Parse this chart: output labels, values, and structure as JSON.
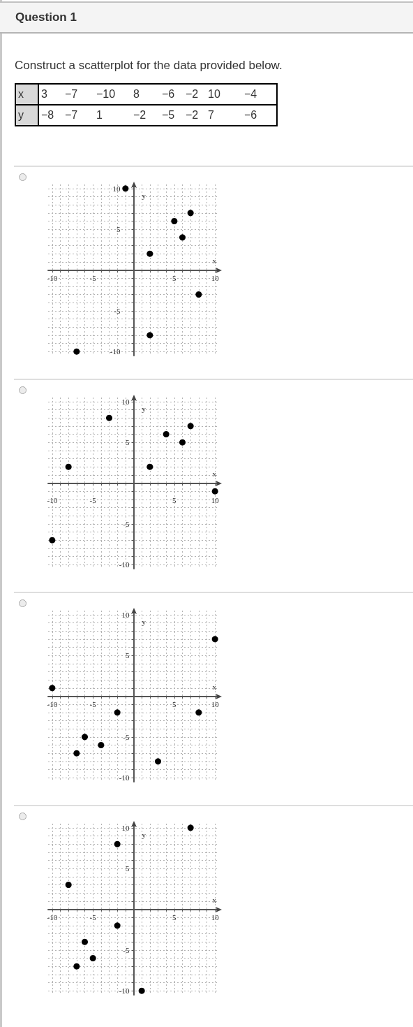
{
  "chart_data": [
    {
      "type": "other",
      "title": "Question 1",
      "subtitle": "Construct a scatterplot for the data provided below.",
      "annotations": [
        "x",
        "3",
        "−7",
        "−10",
        "8",
        "−6",
        "−2",
        "10",
        "−4",
        "y",
        "−8",
        "−7",
        "1",
        "−2",
        "−5",
        "−2",
        "7",
        "−6"
      ]
    },
    {
      "type": "scatter",
      "xlabel": "x",
      "ylabel": "y",
      "x": [
        -1,
        5,
        7,
        6,
        2,
        8,
        2,
        -7
      ],
      "values": [
        10,
        6,
        7,
        4,
        2,
        -3,
        -8,
        -10
      ],
      "color": "#000000",
      "marker": "circle",
      "grid": true,
      "xlim": [
        -10.5,
        10.5
      ],
      "ylim": [
        -10.5,
        10.5
      ],
      "xticks": [
        -10,
        {
          "value": -9,
          "label": null
        },
        {
          "value": -8,
          "label": null
        },
        {
          "value": -7,
          "label": null
        },
        {
          "value": -6,
          "label": null
        },
        -5,
        {
          "value": -4,
          "label": null
        },
        {
          "value": -3,
          "label": null
        },
        {
          "value": -2,
          "label": null
        },
        {
          "value": -1,
          "label": null
        },
        {
          "value": 1,
          "label": null
        },
        {
          "value": 2,
          "label": null
        },
        {
          "value": 3,
          "label": null
        },
        {
          "value": 4,
          "label": null
        },
        5,
        {
          "value": 6,
          "label": null
        },
        {
          "value": 7,
          "label": null
        },
        {
          "value": 8,
          "label": null
        },
        {
          "value": 9,
          "label": null
        },
        10
      ],
      "yticks": [
        -10,
        {
          "value": -9,
          "label": null
        },
        {
          "value": -8,
          "label": null
        },
        {
          "value": -7,
          "label": null
        },
        {
          "value": -6,
          "label": null
        },
        -5,
        {
          "value": -4,
          "label": null
        },
        {
          "value": -3,
          "label": null
        },
        {
          "value": -2,
          "label": null
        },
        {
          "value": -1,
          "label": null
        },
        {
          "value": 1,
          "label": null
        },
        {
          "value": 2,
          "label": null
        },
        {
          "value": 3,
          "label": null
        },
        {
          "value": 4,
          "label": null
        },
        5,
        {
          "value": 6,
          "label": null
        },
        {
          "value": 7,
          "label": null
        },
        {
          "value": 8,
          "label": null
        },
        {
          "value": 9,
          "label": null
        },
        10
      ]
    },
    {
      "type": "scatter",
      "xlabel": "x",
      "ylabel": "y",
      "x": [
        -8,
        -3,
        2,
        4,
        6,
        7,
        10,
        -10
      ],
      "values": [
        2,
        8,
        2,
        6,
        5,
        7,
        -1,
        -7
      ],
      "color": "#000000",
      "marker": "circle",
      "grid": true,
      "xlim": [
        -10.5,
        10.5
      ],
      "ylim": [
        -10.5,
        10.5
      ],
      "xticks": [
        -10,
        {
          "value": -9,
          "label": null
        },
        {
          "value": -8,
          "label": null
        },
        {
          "value": -7,
          "label": null
        },
        {
          "value": -6,
          "label": null
        },
        -5,
        {
          "value": -4,
          "label": null
        },
        {
          "value": -3,
          "label": null
        },
        {
          "value": -2,
          "label": null
        },
        {
          "value": -1,
          "label": null
        },
        {
          "value": 1,
          "label": null
        },
        {
          "value": 2,
          "label": null
        },
        {
          "value": 3,
          "label": null
        },
        {
          "value": 4,
          "label": null
        },
        5,
        {
          "value": 6,
          "label": null
        },
        {
          "value": 7,
          "label": null
        },
        {
          "value": 8,
          "label": null
        },
        {
          "value": 9,
          "label": null
        },
        10
      ],
      "yticks": [
        -10,
        {
          "value": -9,
          "label": null
        },
        {
          "value": -8,
          "label": null
        },
        {
          "value": -7,
          "label": null
        },
        {
          "value": -6,
          "label": null
        },
        -5,
        {
          "value": -4,
          "label": null
        },
        {
          "value": -3,
          "label": null
        },
        {
          "value": -2,
          "label": null
        },
        {
          "value": -1,
          "label": null
        },
        {
          "value": 1,
          "label": null
        },
        {
          "value": 2,
          "label": null
        },
        {
          "value": 3,
          "label": null
        },
        {
          "value": 4,
          "label": null
        },
        5,
        {
          "value": 6,
          "label": null
        },
        {
          "value": 7,
          "label": null
        },
        {
          "value": 8,
          "label": null
        },
        {
          "value": 9,
          "label": null
        },
        10
      ]
    },
    {
      "type": "scatter",
      "xlabel": "x",
      "ylabel": "y",
      "x": [
        -10,
        10,
        -2,
        8,
        -6,
        -7,
        -4,
        3
      ],
      "values": [
        1,
        7,
        -2,
        -2,
        -5,
        -7,
        -6,
        -8
      ],
      "color": "#000000",
      "marker": "circle",
      "grid": true,
      "xlim": [
        -10.5,
        10.5
      ],
      "ylim": [
        -10.5,
        10.5
      ],
      "xticks": [
        -10,
        {
          "value": -9,
          "label": null
        },
        {
          "value": -8,
          "label": null
        },
        {
          "value": -7,
          "label": null
        },
        {
          "value": -6,
          "label": null
        },
        -5,
        {
          "value": -4,
          "label": null
        },
        {
          "value": -3,
          "label": null
        },
        {
          "value": -2,
          "label": null
        },
        {
          "value": -1,
          "label": null
        },
        {
          "value": 1,
          "label": null
        },
        {
          "value": 2,
          "label": null
        },
        {
          "value": 3,
          "label": null
        },
        {
          "value": 4,
          "label": null
        },
        5,
        {
          "value": 6,
          "label": null
        },
        {
          "value": 7,
          "label": null
        },
        {
          "value": 8,
          "label": null
        },
        {
          "value": 9,
          "label": null
        },
        10
      ],
      "yticks": [
        -10,
        {
          "value": -9,
          "label": null
        },
        {
          "value": -8,
          "label": null
        },
        {
          "value": -7,
          "label": null
        },
        {
          "value": -6,
          "label": null
        },
        -5,
        {
          "value": -4,
          "label": null
        },
        {
          "value": -3,
          "label": null
        },
        {
          "value": -2,
          "label": null
        },
        {
          "value": -1,
          "label": null
        },
        {
          "value": 1,
          "label": null
        },
        {
          "value": 2,
          "label": null
        },
        {
          "value": 3,
          "label": null
        },
        {
          "value": 4,
          "label": null
        },
        5,
        {
          "value": 6,
          "label": null
        },
        {
          "value": 7,
          "label": null
        },
        {
          "value": 8,
          "label": null
        },
        {
          "value": 9,
          "label": null
        },
        10
      ]
    },
    {
      "type": "scatter",
      "xlabel": "x",
      "ylabel": "y",
      "x": [
        7,
        -2,
        -8,
        -2,
        -6,
        -5,
        -7,
        1
      ],
      "values": [
        10,
        8,
        3,
        -2,
        -4,
        -6,
        -7,
        -10
      ],
      "color": "#000000",
      "marker": "circle",
      "grid": true,
      "xlim": [
        -10.5,
        10.5
      ],
      "ylim": [
        -10.5,
        10.5
      ],
      "xticks": [
        -10,
        {
          "value": -9,
          "label": null
        },
        {
          "value": -8,
          "label": null
        },
        {
          "value": -7,
          "label": null
        },
        {
          "value": -6,
          "label": null
        },
        -5,
        {
          "value": -4,
          "label": null
        },
        {
          "value": -3,
          "label": null
        },
        {
          "value": -2,
          "label": null
        },
        {
          "value": -1,
          "label": null
        },
        {
          "value": 1,
          "label": null
        },
        {
          "value": 2,
          "label": null
        },
        {
          "value": 3,
          "label": null
        },
        {
          "value": 4,
          "label": null
        },
        5,
        {
          "value": 6,
          "label": null
        },
        {
          "value": 7,
          "label": null
        },
        {
          "value": 8,
          "label": null
        },
        {
          "value": 9,
          "label": null
        },
        10
      ],
      "yticks": [
        -10,
        {
          "value": -9,
          "label": null
        },
        {
          "value": -8,
          "label": null
        },
        {
          "value": -7,
          "label": null
        },
        {
          "value": -6,
          "label": null
        },
        -5,
        {
          "value": -4,
          "label": null
        },
        {
          "value": -3,
          "label": null
        },
        {
          "value": -2,
          "label": null
        },
        {
          "value": -1,
          "label": null
        },
        {
          "value": 1,
          "label": null
        },
        {
          "value": 2,
          "label": null
        },
        {
          "value": 3,
          "label": null
        },
        {
          "value": 4,
          "label": null
        },
        5,
        {
          "value": 6,
          "label": null
        },
        {
          "value": 7,
          "label": null
        },
        {
          "value": 8,
          "label": null
        },
        {
          "value": 9,
          "label": null
        },
        10
      ]
    }
  ]
}
